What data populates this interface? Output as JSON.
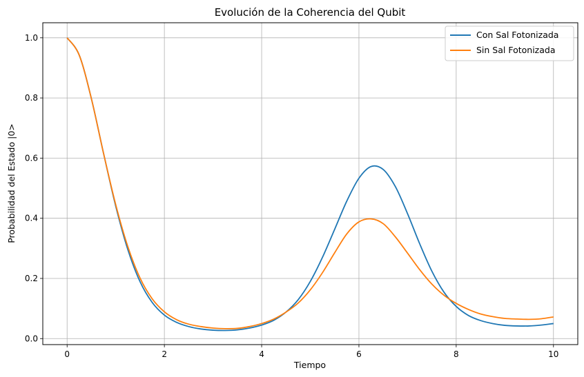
{
  "chart_data": {
    "type": "line",
    "title": "Evolución de la Coherencia del Qubit",
    "xlabel": "Tiempo",
    "ylabel": "Probabilidad del Estado |0>",
    "xlim": [
      -0.5,
      10.5
    ],
    "ylim": [
      -0.02,
      1.05
    ],
    "xticks": [
      0,
      2,
      4,
      6,
      8,
      10
    ],
    "xtick_labels": [
      "0",
      "2",
      "4",
      "6",
      "8",
      "10"
    ],
    "yticks": [
      0.0,
      0.2,
      0.4,
      0.6,
      0.8,
      1.0
    ],
    "ytick_labels": [
      "0.0",
      "0.2",
      "0.4",
      "0.6",
      "0.8",
      "1.0"
    ],
    "grid": true,
    "legend_position": "top-right",
    "series": [
      {
        "name": "Con Sal Fotonizada",
        "color": "#1f77b4",
        "x": [
          0,
          0.25,
          0.5,
          0.75,
          1,
          1.25,
          1.5,
          1.75,
          2,
          2.25,
          2.5,
          2.75,
          3,
          3.25,
          3.5,
          3.75,
          4,
          4.25,
          4.5,
          4.75,
          5,
          5.25,
          5.5,
          5.75,
          6,
          6.25,
          6.5,
          6.75,
          7,
          7.25,
          7.5,
          7.75,
          8,
          8.25,
          8.5,
          8.75,
          9,
          9.25,
          9.5,
          9.75,
          10
        ],
        "y": [
          1.0,
          0.942,
          0.797,
          0.615,
          0.44,
          0.295,
          0.189,
          0.12,
          0.078,
          0.054,
          0.04,
          0.032,
          0.028,
          0.027,
          0.029,
          0.035,
          0.045,
          0.061,
          0.088,
          0.129,
          0.19,
          0.27,
          0.363,
          0.457,
          0.533,
          0.572,
          0.562,
          0.505,
          0.415,
          0.315,
          0.224,
          0.154,
          0.107,
          0.077,
          0.06,
          0.05,
          0.044,
          0.042,
          0.042,
          0.045,
          0.05
        ]
      },
      {
        "name": "Sin Sal Fotonizada",
        "color": "#ff7f0e",
        "x": [
          0,
          0.25,
          0.5,
          0.75,
          1,
          1.25,
          1.5,
          1.75,
          2,
          2.25,
          2.5,
          2.75,
          3,
          3.25,
          3.5,
          3.75,
          4,
          4.25,
          4.5,
          4.75,
          5,
          5.25,
          5.5,
          5.75,
          6,
          6.25,
          6.5,
          6.75,
          7,
          7.25,
          7.5,
          7.75,
          8,
          8.25,
          8.5,
          8.75,
          9,
          9.25,
          9.5,
          9.75,
          10
        ],
        "y": [
          1.0,
          0.942,
          0.797,
          0.615,
          0.445,
          0.305,
          0.201,
          0.132,
          0.089,
          0.063,
          0.048,
          0.04,
          0.035,
          0.033,
          0.034,
          0.04,
          0.05,
          0.065,
          0.088,
          0.118,
          0.162,
          0.219,
          0.285,
          0.348,
          0.388,
          0.398,
          0.382,
          0.338,
          0.284,
          0.229,
          0.181,
          0.144,
          0.117,
          0.097,
          0.082,
          0.073,
          0.067,
          0.065,
          0.064,
          0.066,
          0.072
        ]
      }
    ]
  }
}
